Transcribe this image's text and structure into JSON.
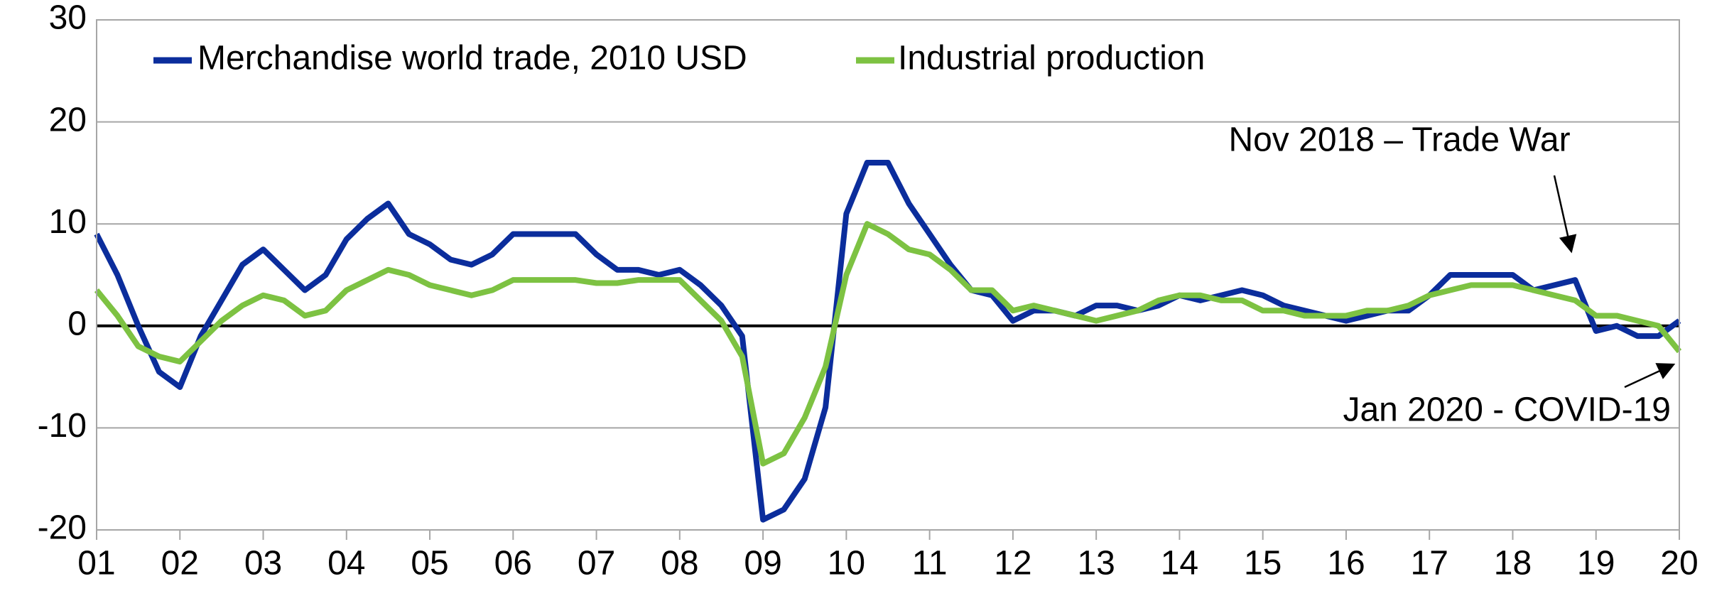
{
  "chart_data": {
    "type": "line",
    "x": [
      1,
      1.25,
      1.5,
      1.75,
      2,
      2.25,
      2.5,
      2.75,
      3,
      3.25,
      3.5,
      3.75,
      4,
      4.25,
      4.5,
      4.75,
      5,
      5.25,
      5.5,
      5.75,
      6,
      6.25,
      6.5,
      6.75,
      7,
      7.25,
      7.5,
      7.75,
      8,
      8.25,
      8.5,
      8.75,
      9,
      9.25,
      9.5,
      9.75,
      10,
      10.25,
      10.5,
      10.75,
      11,
      11.25,
      11.5,
      11.75,
      12,
      12.25,
      12.5,
      12.75,
      13,
      13.25,
      13.5,
      13.75,
      14,
      14.25,
      14.5,
      14.75,
      15,
      15.25,
      15.5,
      15.75,
      16,
      16.25,
      16.5,
      16.75,
      17,
      17.25,
      17.5,
      17.75,
      18,
      18.25,
      18.5,
      18.75,
      19,
      19.25,
      19.5,
      19.75,
      20
    ],
    "series": [
      {
        "name": "Merchandise world trade, 2010 USD",
        "color": "#0b2d9c",
        "values": [
          9,
          5,
          0,
          -4.5,
          -6,
          -1,
          2.5,
          6,
          7.5,
          5.5,
          3.5,
          5,
          8.5,
          10.5,
          12,
          9,
          8,
          6.5,
          6,
          7,
          9,
          9,
          9,
          9,
          7,
          5.5,
          5.5,
          5,
          5.5,
          4,
          2,
          -1,
          -19,
          -18,
          -15,
          -8,
          11,
          16,
          16,
          12,
          9,
          6,
          3.5,
          3,
          0.5,
          1.5,
          1.5,
          1,
          2,
          2,
          1.5,
          2,
          3,
          2.5,
          3,
          3.5,
          3,
          2,
          1.5,
          1,
          0.5,
          1,
          1.5,
          1.5,
          3,
          5,
          5,
          5,
          5,
          3.5,
          4,
          4.5,
          -0.5,
          0,
          -1,
          -1,
          0.5
        ]
      },
      {
        "name": "Industrial production",
        "color": "#7dc242",
        "values": [
          3.5,
          1,
          -2,
          -3,
          -3.5,
          -1.5,
          0.5,
          2,
          3,
          2.5,
          1,
          1.5,
          3.5,
          4.5,
          5.5,
          5,
          4,
          3.5,
          3,
          3.5,
          4.5,
          4.5,
          4.5,
          4.5,
          4.2,
          4.2,
          4.5,
          4.5,
          4.5,
          2.5,
          0.5,
          -3,
          -13.5,
          -12.5,
          -9,
          -4,
          5,
          10,
          9,
          7.5,
          7,
          5.5,
          3.5,
          3.5,
          1.5,
          2,
          1.5,
          1,
          0.5,
          1,
          1.5,
          2.5,
          3,
          3,
          2.5,
          2.5,
          1.5,
          1.5,
          1,
          1,
          1,
          1.5,
          1.5,
          2,
          3,
          3.5,
          4,
          4,
          4,
          3.5,
          3,
          2.5,
          1,
          1,
          0.5,
          0,
          -2.5
        ]
      }
    ],
    "xlim": [
      1,
      20
    ],
    "xticks": [
      {
        "value": 1,
        "label": "01"
      },
      {
        "value": 2,
        "label": "02"
      },
      {
        "value": 3,
        "label": "03"
      },
      {
        "value": 4,
        "label": "04"
      },
      {
        "value": 5,
        "label": "05"
      },
      {
        "value": 6,
        "label": "06"
      },
      {
        "value": 7,
        "label": "07"
      },
      {
        "value": 8,
        "label": "08"
      },
      {
        "value": 9,
        "label": "09"
      },
      10,
      11,
      12,
      13,
      14,
      15,
      16,
      17,
      18,
      19,
      20
    ],
    "ylim": [
      -20,
      30
    ],
    "yticks": [
      -20,
      -10,
      0,
      10,
      20,
      30
    ],
    "grid": true,
    "legend": "upper left",
    "annotations": [
      {
        "text": "Nov 2018 – Trade War"
      },
      {
        "text": "Jan 2020 - COVID-19"
      }
    ]
  }
}
